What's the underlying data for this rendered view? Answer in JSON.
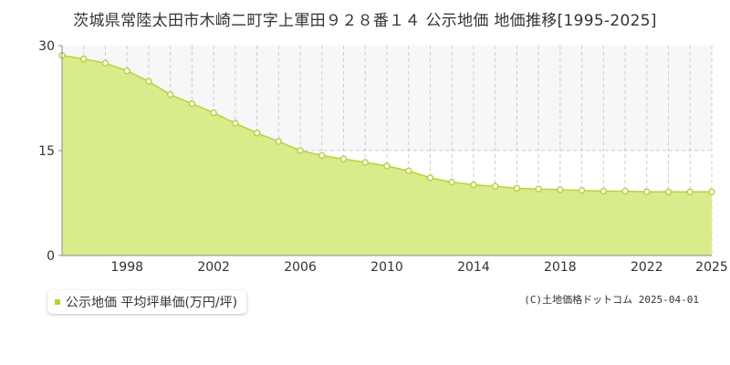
{
  "title": "茨城県常陸太田市木崎二町字上軍田９２８番１４ 公示地価 地価推移[1995-2025]",
  "credit": "(C)土地価格ドットコム 2025-04-01",
  "colors": {
    "area_fill": "#d9ec8c",
    "line": "#b5d43c",
    "marker_fill": "#ffffff",
    "plot_bg": "#ffffff",
    "upper_band_bg": "#f7f7f9",
    "grid": "#cccccc",
    "legend_swatch": "#b5d43c"
  },
  "chart_data": {
    "type": "area",
    "title": "茨城県常陸太田市木崎二町字上軍田９２８番１４ 公示地価 地価推移[1995-2025]",
    "xlabel": "",
    "ylabel": "",
    "x": [
      1995,
      1996,
      1997,
      1998,
      1999,
      2000,
      2001,
      2002,
      2003,
      2004,
      2005,
      2006,
      2007,
      2008,
      2009,
      2010,
      2011,
      2012,
      2013,
      2014,
      2015,
      2016,
      2017,
      2018,
      2019,
      2020,
      2021,
      2022,
      2023,
      2024,
      2025
    ],
    "x_ticks": [
      "1998",
      "2002",
      "2006",
      "2010",
      "2014",
      "2018",
      "2022",
      "2025"
    ],
    "xlim": [
      1995,
      2025
    ],
    "y_ticks": [
      "0",
      "15",
      "30"
    ],
    "ylim": [
      0,
      30
    ],
    "grid": true,
    "legend_position": "bottom-left",
    "series": [
      {
        "name": "公示地価 平均坪単価(万円/坪)",
        "values": [
          28.6,
          28.1,
          27.5,
          26.4,
          24.9,
          23.0,
          21.7,
          20.4,
          18.9,
          17.5,
          16.3,
          15.0,
          14.3,
          13.8,
          13.3,
          12.8,
          12.1,
          11.1,
          10.5,
          10.1,
          9.9,
          9.6,
          9.5,
          9.4,
          9.3,
          9.2,
          9.2,
          9.1,
          9.1,
          9.1,
          9.1
        ]
      }
    ]
  }
}
